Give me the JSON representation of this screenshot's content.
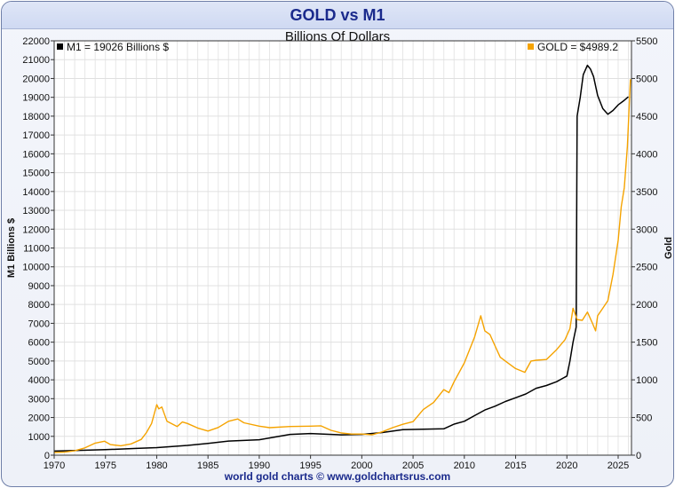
{
  "chart_data": {
    "type": "line",
    "title": "GOLD vs M1",
    "subtitle": "Billions Of Dollars",
    "footer": "world gold charts © www.goldchartsrus.com",
    "ylabel_left": "M1 Billions $",
    "ylabel_right": "Gold",
    "xlim": [
      1970,
      2026.3
    ],
    "ylim_left": [
      0,
      22000
    ],
    "ylim_right": [
      0,
      5500
    ],
    "x_ticks": [
      "1970",
      "1975",
      "1980",
      "1985",
      "1990",
      "1995",
      "2000",
      "2005",
      "2010",
      "2015",
      "2020",
      "2025"
    ],
    "y_ticks_left": [
      "0",
      "1000",
      "2000",
      "3000",
      "4000",
      "5000",
      "6000",
      "7000",
      "8000",
      "9000",
      "10000",
      "11000",
      "12000",
      "13000",
      "14000",
      "15000",
      "16000",
      "17000",
      "18000",
      "19000",
      "20000",
      "21000",
      "22000"
    ],
    "y_ticks_right": [
      "0",
      "500",
      "1000",
      "1500",
      "2000",
      "2500",
      "3000",
      "3500",
      "4000",
      "4500",
      "5000",
      "5500"
    ],
    "grid": true,
    "legend": [
      {
        "label": "M1",
        "value_text": "= 19026 Billions $",
        "color": "#000000",
        "axis": "left"
      },
      {
        "label": "GOLD",
        "value_text": "= $4989.2",
        "color": "#f5a300",
        "axis": "right"
      }
    ],
    "series": [
      {
        "name": "M1",
        "axis": "left",
        "color": "#000000",
        "x": [
          1970,
          1972,
          1975,
          1978,
          1980,
          1983,
          1985,
          1987,
          1990,
          1993,
          1995,
          1998,
          2000,
          2002,
          2004,
          2006,
          2008,
          2009,
          2010,
          2011,
          2012,
          2013,
          2014,
          2015,
          2016,
          2017,
          2018,
          2019,
          2020.0,
          2020.3,
          2020.6,
          2020.9,
          2021.0,
          2021.3,
          2021.6,
          2022.0,
          2022.3,
          2022.6,
          2023.0,
          2023.5,
          2024.0,
          2024.5,
          2025.0,
          2025.5,
          2026.0
        ],
        "values": [
          215,
          245,
          290,
          360,
          400,
          520,
          620,
          750,
          820,
          1100,
          1150,
          1080,
          1100,
          1200,
          1350,
          1380,
          1400,
          1650,
          1800,
          2100,
          2400,
          2600,
          2850,
          3050,
          3250,
          3550,
          3700,
          3900,
          4200,
          5000,
          6000,
          6800,
          18000,
          19000,
          20200,
          20700,
          20500,
          20100,
          19100,
          18400,
          18100,
          18300,
          18600,
          18800,
          19026
        ]
      },
      {
        "name": "GOLD",
        "axis": "right",
        "color": "#f5a300",
        "x": [
          1970,
          1971,
          1972,
          1973,
          1974,
          1974.9,
          1975.5,
          1976.5,
          1977.5,
          1978.5,
          1979.0,
          1979.5,
          1980.0,
          1980.2,
          1980.5,
          1981.0,
          1982.0,
          1982.5,
          1983.0,
          1984.0,
          1985.0,
          1986.0,
          1987.0,
          1987.9,
          1988.5,
          1990.0,
          1991.0,
          1993.0,
          1995.0,
          1996.0,
          1997.0,
          1998.0,
          1999.0,
          2000.0,
          2001.0,
          2002.0,
          2003.0,
          2004.0,
          2005.0,
          2006.0,
          2007.0,
          2008.0,
          2008.5,
          2009.0,
          2010.0,
          2011.0,
          2011.6,
          2012.0,
          2012.5,
          2013.0,
          2013.5,
          2014.0,
          2015.0,
          2015.9,
          2016.5,
          2017.0,
          2018.0,
          2019.0,
          2019.8,
          2020.3,
          2020.6,
          2021.0,
          2021.5,
          2022.0,
          2022.5,
          2022.8,
          2023.0,
          2023.5,
          2024.0,
          2024.5,
          2025.0,
          2025.3,
          2025.6,
          2025.9,
          2026.2
        ],
        "values": [
          35,
          40,
          58,
          97,
          160,
          185,
          140,
          125,
          150,
          210,
          300,
          420,
          670,
          615,
          640,
          450,
          380,
          440,
          420,
          360,
          320,
          368,
          450,
          480,
          430,
          385,
          365,
          380,
          385,
          390,
          330,
          295,
          280,
          280,
          270,
          310,
          365,
          410,
          445,
          605,
          700,
          870,
          830,
          975,
          1225,
          1570,
          1850,
          1650,
          1600,
          1450,
          1300,
          1250,
          1150,
          1100,
          1250,
          1260,
          1270,
          1400,
          1530,
          1680,
          1950,
          1800,
          1790,
          1900,
          1750,
          1650,
          1850,
          1950,
          2050,
          2400,
          2850,
          3300,
          3550,
          4100,
          4989.2
        ]
      }
    ]
  }
}
